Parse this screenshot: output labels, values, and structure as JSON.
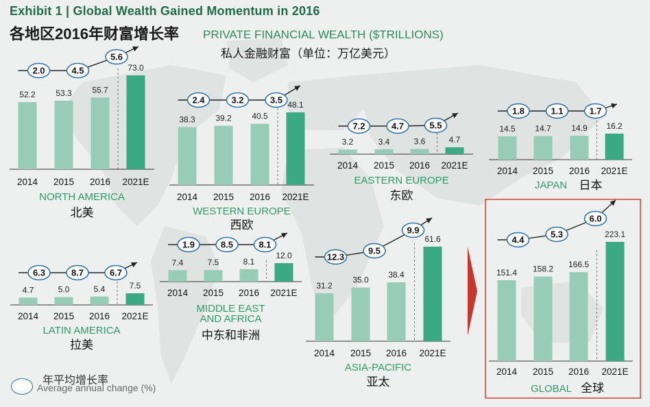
{
  "header": {
    "exhibit": "Exhibit 1 | Global Wealth Gained Momentum in 2016",
    "title_cn": "各地区2016年财富增长率",
    "subtitle_en": "PRIVATE FINANCIAL WEALTH ($TRILLIONS)",
    "subtitle_cn": "私人金融财富（单位：万亿美元）"
  },
  "legend": {
    "label_cn": "年平均增长率",
    "label_en": "Average annual change (%)"
  },
  "colors": {
    "bar_actual": "#97cdb8",
    "bar_forecast": "#3aa984",
    "oval_border": "#2b6fa6",
    "region_text": "#2e9a6b",
    "highlight_box": "#d0402f"
  },
  "chart_data": [
    {
      "type": "bar",
      "region_en": "NORTH AMERICA",
      "region_cn": "北美",
      "categories": [
        "2014",
        "2015",
        "2016",
        "2021E"
      ],
      "values": [
        52.2,
        53.3,
        55.7,
        73.0
      ],
      "value_labels": [
        "52.2",
        "53.3",
        "55.7",
        "73.0"
      ],
      "growth_rates": [
        "2.0",
        "4.5",
        "5.6"
      ]
    },
    {
      "type": "bar",
      "region_en": "WESTERN EUROPE",
      "region_cn": "西欧",
      "categories": [
        "2014",
        "2015",
        "2016",
        "2021E"
      ],
      "values": [
        38.3,
        39.2,
        40.5,
        48.1
      ],
      "value_labels": [
        "38.3",
        "39.2",
        "40.5",
        "48.1"
      ],
      "growth_rates": [
        "2.4",
        "3.2",
        "3.5"
      ]
    },
    {
      "type": "bar",
      "region_en": "EASTERN EUROPE",
      "region_cn": "东欧",
      "categories": [
        "2014",
        "2015",
        "2016",
        "2021E"
      ],
      "values": [
        3.2,
        3.4,
        3.6,
        4.7
      ],
      "value_labels": [
        "3.2",
        "3.4",
        "3.6",
        "4.7"
      ],
      "growth_rates": [
        "7.2",
        "4.7",
        "5.5"
      ]
    },
    {
      "type": "bar",
      "region_en": "JAPAN",
      "region_cn": "日本",
      "categories": [
        "2014",
        "2015",
        "2016",
        "2021E"
      ],
      "values": [
        14.5,
        14.7,
        14.9,
        16.2
      ],
      "value_labels": [
        "14.5",
        "14.7",
        "14.9",
        "16.2"
      ],
      "growth_rates": [
        "1.8",
        "1.1",
        "1.7"
      ]
    },
    {
      "type": "bar",
      "region_en": "LATIN AMERICA",
      "region_cn": "拉美",
      "categories": [
        "2014",
        "2015",
        "2016",
        "2021E"
      ],
      "values": [
        4.7,
        5.0,
        5.4,
        7.5
      ],
      "value_labels": [
        "4.7",
        "5.0",
        "5.4",
        "7.5"
      ],
      "growth_rates": [
        "6.3",
        "8.7",
        "6.7"
      ]
    },
    {
      "type": "bar",
      "region_en": "MIDDLE EAST AND AFRICA",
      "region_cn": "中东和非洲",
      "categories": [
        "2014",
        "2015",
        "2016",
        "2021E"
      ],
      "values": [
        7.4,
        7.5,
        8.1,
        12.0
      ],
      "value_labels": [
        "7.4",
        "7.5",
        "8.1",
        "12.0"
      ],
      "growth_rates": [
        "1.9",
        "8.5",
        "8.1"
      ]
    },
    {
      "type": "bar",
      "region_en": "ASIA-PACIFIC",
      "region_cn": "亚太",
      "categories": [
        "2014",
        "2015",
        "2016",
        "2021E"
      ],
      "values": [
        31.2,
        35.0,
        38.4,
        61.6
      ],
      "value_labels": [
        "31.2",
        "35.0",
        "38.4",
        "61.6"
      ],
      "growth_rates": [
        "12.3",
        "9.5",
        "9.9"
      ]
    },
    {
      "type": "bar",
      "region_en": "GLOBAL",
      "region_cn": "全球",
      "categories": [
        "2014",
        "2015",
        "2016",
        "2021E"
      ],
      "values": [
        151.4,
        158.2,
        166.5,
        223.1
      ],
      "value_labels": [
        "151.4",
        "158.2",
        "166.5",
        "223.1"
      ],
      "growth_rates": [
        "4.4",
        "5.3",
        "6.0"
      ]
    }
  ]
}
